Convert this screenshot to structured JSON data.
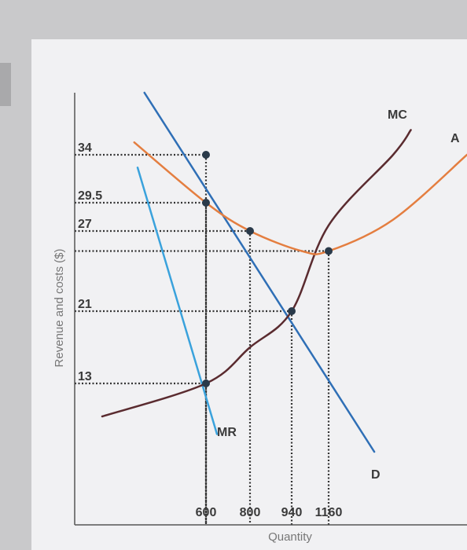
{
  "chart_data": {
    "type": "line",
    "title": "",
    "xlabel": "Quantity",
    "ylabel": "Revenue and costs ($)",
    "x_ticks": [
      "600",
      "800",
      "940",
      "1160"
    ],
    "y_ticks": [
      "13",
      "21",
      "27",
      "29.5",
      "34"
    ],
    "series": [
      {
        "name": "D",
        "color": "#2f6fb6",
        "points": [
          [
            330,
            39.0
          ],
          [
            600,
            34.0
          ],
          [
            800,
            27.0
          ],
          [
            940,
            21.0
          ],
          [
            1160,
            13.0
          ],
          [
            1330,
            7.0
          ]
        ]
      },
      {
        "name": "MR",
        "color": "#3aa2dc",
        "points": [
          [
            300,
            32.8
          ],
          [
            400,
            30.0
          ],
          [
            600,
            13.0
          ],
          [
            650,
            8.5
          ]
        ]
      },
      {
        "name": "MC",
        "color": "#5a2b2f",
        "points": [
          [
            140,
            10.0
          ],
          [
            600,
            13.0
          ],
          [
            800,
            17.0
          ],
          [
            940,
            21.0
          ],
          [
            1160,
            27.5
          ],
          [
            1400,
            34.0
          ],
          [
            1460,
            36.0
          ]
        ]
      },
      {
        "name": "ATC",
        "label": "A",
        "color": "#e47e40",
        "points": [
          [
            285,
            35.0
          ],
          [
            600,
            29.5
          ],
          [
            800,
            27.0
          ],
          [
            1000,
            25.5
          ],
          [
            1160,
            25.5
          ],
          [
            1400,
            28.0
          ],
          [
            1650,
            34.0
          ]
        ]
      }
    ],
    "markers": [
      {
        "x": 600,
        "y": 34.0
      },
      {
        "x": 600,
        "y": 29.5
      },
      {
        "x": 600,
        "y": 13.0
      },
      {
        "x": 800,
        "y": 27.0
      },
      {
        "x": 940,
        "y": 21.0
      },
      {
        "x": 1160,
        "y": 25.5
      }
    ],
    "guides": [
      {
        "x": 600,
        "y": 34.0
      },
      {
        "x": 600,
        "y": 29.5
      },
      {
        "x": 800,
        "y": 27.0
      },
      {
        "x": 940,
        "y": 21.0
      },
      {
        "x": 600,
        "y": 13.0
      },
      {
        "x": 1160,
        "y": 25.5
      }
    ],
    "grid": false,
    "legend": "none"
  }
}
